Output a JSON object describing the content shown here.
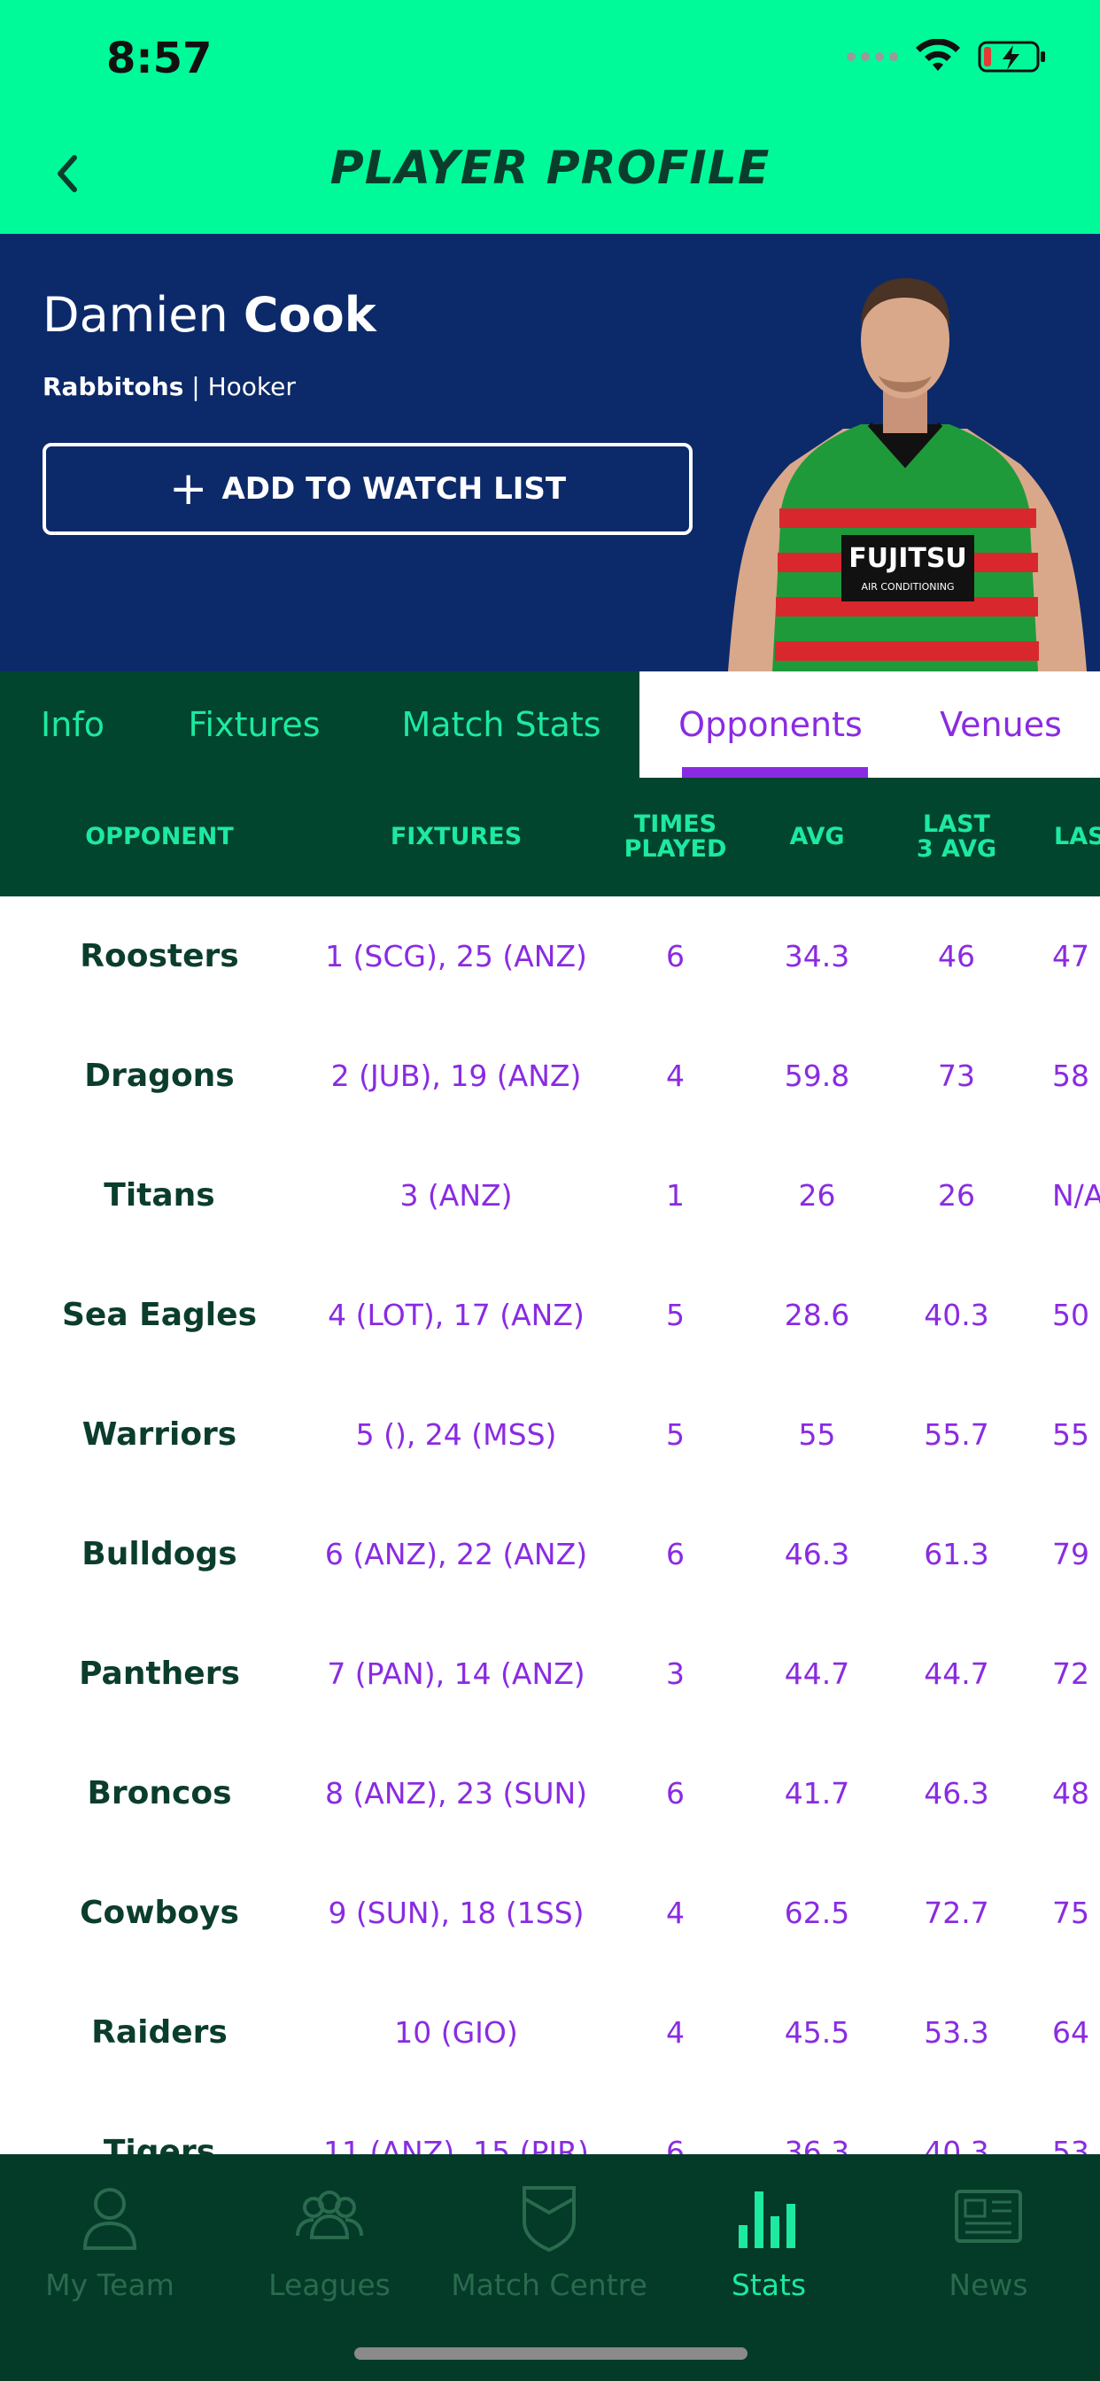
{
  "status_bar": {
    "time": "8:57"
  },
  "header": {
    "title": "PLAYER PROFILE"
  },
  "player": {
    "first_name": "Damien",
    "last_name": "Cook",
    "team": "Rabbitohs",
    "separator": " | ",
    "position": "Hooker",
    "watch_button": "ADD TO WATCH LIST",
    "jersey_text": "FUJITSU",
    "jersey_subtext": "AIR CONDITIONING"
  },
  "tabs": [
    {
      "label": "Info"
    },
    {
      "label": "Fixtures"
    },
    {
      "label": "Match Stats"
    },
    {
      "label": "Opponents",
      "active": true
    },
    {
      "label": "Venues"
    }
  ],
  "table": {
    "columns": [
      "OPPONENT",
      "FIXTURES",
      "TIMES\nPLAYED",
      "AVG",
      "LAST\n3 AVG",
      "LAS"
    ],
    "rows": [
      {
        "opponent": "Roosters",
        "fixtures": "1 (SCG), 25 (ANZ)",
        "times": "6",
        "avg": "34.3",
        "last3": "46",
        "last": "47"
      },
      {
        "opponent": "Dragons",
        "fixtures": "2 (JUB), 19 (ANZ)",
        "times": "4",
        "avg": "59.8",
        "last3": "73",
        "last": "58"
      },
      {
        "opponent": "Titans",
        "fixtures": "3 (ANZ)",
        "times": "1",
        "avg": "26",
        "last3": "26",
        "last": "N/A"
      },
      {
        "opponent": "Sea Eagles",
        "fixtures": "4 (LOT), 17 (ANZ)",
        "times": "5",
        "avg": "28.6",
        "last3": "40.3",
        "last": "50"
      },
      {
        "opponent": "Warriors",
        "fixtures": "5 (), 24 (MSS)",
        "times": "5",
        "avg": "55",
        "last3": "55.7",
        "last": "55"
      },
      {
        "opponent": "Bulldogs",
        "fixtures": "6 (ANZ), 22 (ANZ)",
        "times": "6",
        "avg": "46.3",
        "last3": "61.3",
        "last": "79"
      },
      {
        "opponent": "Panthers",
        "fixtures": "7 (PAN), 14 (ANZ)",
        "times": "3",
        "avg": "44.7",
        "last3": "44.7",
        "last": "72"
      },
      {
        "opponent": "Broncos",
        "fixtures": "8 (ANZ), 23 (SUN)",
        "times": "6",
        "avg": "41.7",
        "last3": "46.3",
        "last": "48"
      },
      {
        "opponent": "Cowboys",
        "fixtures": "9 (SUN), 18 (1SS)",
        "times": "4",
        "avg": "62.5",
        "last3": "72.7",
        "last": "75"
      },
      {
        "opponent": "Raiders",
        "fixtures": "10 (GIO)",
        "times": "4",
        "avg": "45.5",
        "last3": "53.3",
        "last": "64"
      },
      {
        "opponent": "Tigers",
        "fixtures": "11 (ANZ), 15 (PIR)",
        "times": "6",
        "avg": "36.3",
        "last3": "40.3",
        "last": "53"
      }
    ]
  },
  "bottom_nav": [
    {
      "label": "My Team",
      "icon": "person-icon"
    },
    {
      "label": "Leagues",
      "icon": "group-icon"
    },
    {
      "label": "Match Centre",
      "icon": "shield-icon"
    },
    {
      "label": "Stats",
      "icon": "bar-chart-icon",
      "active": true
    },
    {
      "label": "News",
      "icon": "newspaper-icon"
    }
  ],
  "colors": {
    "accent_green": "#00fa9a",
    "dark_green": "#02452f",
    "navy": "#0c2a6a",
    "purple": "#8a2be2"
  }
}
